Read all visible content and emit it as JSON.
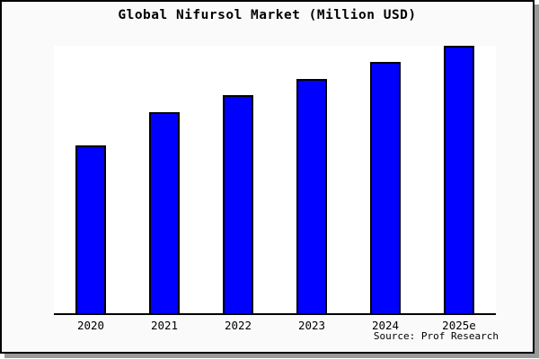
{
  "page": {
    "bg_color": "#ffffff",
    "card_bg_color": "#fafafa",
    "frame_color": "#000000",
    "shadow_color": "#999999",
    "plot_bg_color": "#ffffff"
  },
  "chart": {
    "title": "Global Nifursol Market (Million USD)",
    "source": "Source: Prof Research",
    "bar_color": "#0000ff",
    "bar_border_color": "#000000",
    "axis_color": "#000000"
  },
  "chart_data": {
    "type": "bar",
    "title": "Global Nifursol Market (Million USD)",
    "categories": [
      "2020",
      "2021",
      "2022",
      "2023",
      "2024",
      "2025e"
    ],
    "values": [
      62.7,
      75.2,
      81.5,
      87.5,
      93.8,
      100
    ],
    "xlabel": "",
    "ylabel": "",
    "ylim": [
      0,
      100
    ],
    "value_basis": "relative index estimated from bar heights (2025e = 100); no y-axis ticks shown in image",
    "grid": false,
    "legend": false,
    "annotations": [
      "Source: Prof Research"
    ]
  }
}
